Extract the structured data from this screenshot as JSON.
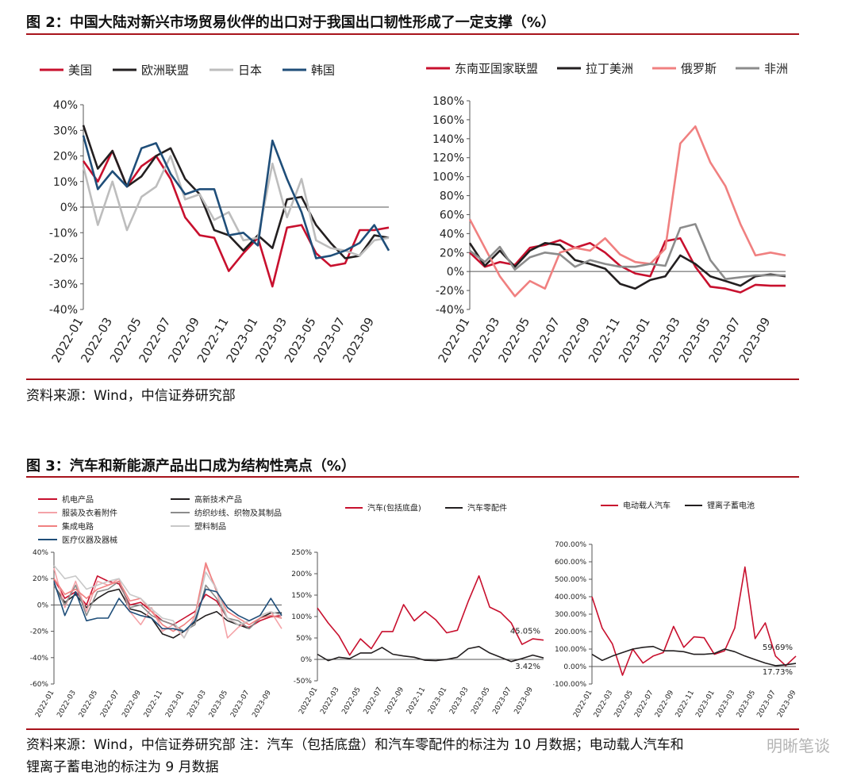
{
  "fig2": {
    "title": "图 2：中国大陆对新兴市场贸易伙伴的出口对于我国出口韧性形成了一定支撑（%）",
    "source": "资料来源：Wind，中信证券研究部"
  },
  "fig3": {
    "title": "图 3：汽车和新能源产品出口成为结构性亮点（%）",
    "source_line1": "资料来源：Wind，中信证券研究部 注：汽车（包括底盘）和汽车零配件的标注为 10 月数据；电动载人汽车和",
    "source_line2": "锂离子蓄电池的标注为 9 月数据"
  },
  "watermark": "明晰笔谈",
  "chart_data": [
    {
      "id": "c1",
      "type": "line",
      "x": [
        "2022-01",
        "2022-02",
        "2022-03",
        "2022-04",
        "2022-05",
        "2022-06",
        "2022-07",
        "2022-08",
        "2022-09",
        "2022-10",
        "2022-11",
        "2022-12",
        "2023-01",
        "2023-02",
        "2023-03",
        "2023-04",
        "2023-05",
        "2023-06",
        "2023-07",
        "2023-08",
        "2023-09",
        "2023-10"
      ],
      "xticks": [
        "2022-01",
        "2022-03",
        "2022-05",
        "2022-07",
        "2022-09",
        "2022-11",
        "2023-01",
        "2023-03",
        "2023-05",
        "2023-07",
        "2023-09"
      ],
      "ylim": [
        -40,
        40
      ],
      "yticks": [
        40,
        30,
        20,
        10,
        0,
        -10,
        -20,
        -30,
        -40
      ],
      "yfmt": "%",
      "series": [
        {
          "name": "美国",
          "color": "#c8102e",
          "values": [
            18,
            10,
            22,
            8,
            16,
            20,
            11,
            -4,
            -11,
            -12,
            -25,
            -18,
            -12,
            -31,
            -8,
            -7,
            -18,
            -23,
            -22,
            -9,
            -9,
            -8
          ]
        },
        {
          "name": "欧洲联盟",
          "color": "#231f20",
          "values": [
            32,
            15,
            22,
            8,
            12,
            20,
            23,
            11,
            5,
            -9,
            -11,
            -17,
            -11,
            -16,
            3,
            4,
            -7,
            -14,
            -20,
            -19,
            -11,
            -12
          ]
        },
        {
          "name": "日本",
          "color": "#bdbdbd",
          "values": [
            16,
            -7,
            10,
            -9,
            4,
            8,
            20,
            3,
            5,
            -5,
            -2,
            -13,
            -12,
            17,
            -4,
            11,
            -13,
            -16,
            -17,
            -19,
            -13,
            -12
          ]
        },
        {
          "name": "韩国",
          "color": "#1f4e79",
          "values": [
            28,
            7,
            14,
            8,
            23,
            25,
            13,
            5,
            7,
            7,
            -11,
            -10,
            -15,
            26,
            11,
            -2,
            -20,
            -19,
            -17,
            -14,
            -7,
            -17
          ]
        }
      ]
    },
    {
      "id": "c2",
      "type": "line",
      "x": [
        "2022-01",
        "2022-02",
        "2022-03",
        "2022-04",
        "2022-05",
        "2022-06",
        "2022-07",
        "2022-08",
        "2022-09",
        "2022-10",
        "2022-11",
        "2022-12",
        "2023-01",
        "2023-02",
        "2023-03",
        "2023-04",
        "2023-05",
        "2023-06",
        "2023-07",
        "2023-08",
        "2023-09",
        "2023-10"
      ],
      "xticks": [
        "2022-01",
        "2022-03",
        "2022-05",
        "2022-07",
        "2022-09",
        "2022-11",
        "2023-01",
        "2023-03",
        "2023-05",
        "2023-07",
        "2023-09"
      ],
      "ylim": [
        -40,
        180
      ],
      "yticks": [
        180,
        160,
        140,
        120,
        100,
        80,
        60,
        40,
        20,
        0,
        -20,
        -40
      ],
      "yfmt": "%",
      "series": [
        {
          "name": "东南亚国家联盟",
          "color": "#c8102e",
          "values": [
            20,
            5,
            10,
            7,
            25,
            28,
            33,
            25,
            30,
            20,
            6,
            -2,
            -5,
            32,
            35,
            5,
            -16,
            -18,
            -22,
            -14,
            -15,
            -15
          ]
        },
        {
          "name": "拉丁美洲",
          "color": "#231f20",
          "values": [
            30,
            6,
            22,
            5,
            22,
            30,
            28,
            12,
            8,
            3,
            -13,
            -18,
            -9,
            -5,
            17,
            8,
            -5,
            -10,
            -15,
            -5,
            -3,
            -5
          ]
        },
        {
          "name": "俄罗斯",
          "color": "#f08080",
          "values": [
            55,
            25,
            -5,
            -26,
            -10,
            -18,
            20,
            25,
            22,
            35,
            18,
            10,
            8,
            24,
            135,
            153,
            115,
            90,
            50,
            17,
            20,
            17
          ]
        },
        {
          "name": "非洲",
          "color": "#8c8c8c",
          "values": [
            22,
            10,
            26,
            2,
            15,
            20,
            18,
            5,
            12,
            8,
            5,
            5,
            8,
            6,
            46,
            50,
            12,
            -8,
            -6,
            -4,
            -4,
            -4
          ]
        }
      ]
    },
    {
      "id": "c3",
      "type": "line",
      "x": [
        "2022-01",
        "2022-02",
        "2022-03",
        "2022-04",
        "2022-05",
        "2022-06",
        "2022-07",
        "2022-08",
        "2022-09",
        "2022-10",
        "2022-11",
        "2022-12",
        "2023-01",
        "2023-02",
        "2023-03",
        "2023-04",
        "2023-05",
        "2023-06",
        "2023-07",
        "2023-08",
        "2023-09",
        "2023-10"
      ],
      "xticks": [
        "2022-01",
        "2022-03",
        "2022-05",
        "2022-07",
        "2022-09",
        "2022-11",
        "2023-01",
        "2023-03",
        "2023-05",
        "2023-07",
        "2023-09"
      ],
      "ylim": [
        -60,
        40
      ],
      "yticks": [
        40,
        20,
        0,
        -20,
        -40,
        -60
      ],
      "yfmt": "%",
      "series": [
        {
          "name": "机电产品",
          "color": "#c8102e",
          "values": [
            20,
            5,
            10,
            0,
            22,
            18,
            16,
            0,
            2,
            -5,
            -12,
            -15,
            -10,
            -5,
            8,
            3,
            -10,
            -15,
            -17,
            -12,
            -9,
            -8
          ]
        },
        {
          "name": "高新技术产品",
          "color": "#231f20",
          "values": [
            15,
            2,
            8,
            -2,
            5,
            10,
            12,
            -3,
            -5,
            -10,
            -22,
            -25,
            -20,
            -13,
            -8,
            -5,
            -12,
            -15,
            -18,
            -10,
            -6,
            -6
          ]
        },
        {
          "name": "服装及衣着附件",
          "color": "#f4a3a8",
          "values": [
            28,
            -2,
            18,
            -5,
            18,
            15,
            20,
            -5,
            -15,
            -2,
            -20,
            -15,
            -25,
            -8,
            30,
            12,
            -25,
            -17,
            -12,
            -8,
            -5,
            -18
          ]
        },
        {
          "name": "纺织纱线、织物及其制品",
          "color": "#8c8c8c",
          "values": [
            15,
            0,
            15,
            -8,
            10,
            12,
            18,
            -2,
            0,
            -8,
            -12,
            -15,
            -20,
            -15,
            15,
            5,
            -10,
            -12,
            -18,
            -10,
            -8,
            -10
          ]
        },
        {
          "name": "集成电路",
          "color": "#f08080",
          "values": [
            20,
            8,
            12,
            5,
            12,
            15,
            18,
            3,
            5,
            -5,
            -15,
            -20,
            -15,
            -8,
            32,
            10,
            -5,
            -10,
            -15,
            -10,
            -8,
            -10
          ]
        },
        {
          "name": "塑料制品",
          "color": "#c8c8c8",
          "values": [
            30,
            20,
            22,
            12,
            15,
            18,
            20,
            8,
            5,
            -3,
            -10,
            -12,
            -25,
            -10,
            25,
            12,
            -10,
            -15,
            -12,
            -8,
            -5,
            -8
          ]
        },
        {
          "name": "医疗仪器及器械",
          "color": "#1f4e79",
          "values": [
            18,
            -8,
            10,
            -12,
            -10,
            -10,
            5,
            -5,
            -8,
            -10,
            -18,
            -18,
            -20,
            -12,
            12,
            10,
            -2,
            -8,
            -12,
            -8,
            5,
            -8
          ]
        }
      ]
    },
    {
      "id": "c4",
      "type": "line",
      "x": [
        "2022-01",
        "2022-02",
        "2022-03",
        "2022-04",
        "2022-05",
        "2022-06",
        "2022-07",
        "2022-08",
        "2022-09",
        "2022-10",
        "2022-11",
        "2022-12",
        "2023-01",
        "2023-02",
        "2023-03",
        "2023-04",
        "2023-05",
        "2023-06",
        "2023-07",
        "2023-08",
        "2023-09",
        "2023-10"
      ],
      "xticks": [
        "2022-01",
        "2022-03",
        "2022-05",
        "2022-07",
        "2022-09",
        "2022-11",
        "2023-01",
        "2023-03",
        "2023-05",
        "2023-07",
        "2023-09"
      ],
      "ylim": [
        -50,
        250
      ],
      "yticks": [
        250,
        200,
        150,
        100,
        50,
        0,
        -50
      ],
      "yfmt": "%",
      "series": [
        {
          "name": "汽车(包括底盘)",
          "color": "#c8102e",
          "values": [
            120,
            85,
            55,
            10,
            48,
            25,
            65,
            65,
            128,
            90,
            112,
            92,
            62,
            68,
            135,
            195,
            122,
            110,
            85,
            35,
            48,
            45.05
          ]
        },
        {
          "name": "汽车零配件",
          "color": "#231f20",
          "values": [
            12,
            -3,
            5,
            2,
            15,
            15,
            28,
            12,
            8,
            5,
            -2,
            -3,
            0,
            5,
            25,
            30,
            15,
            5,
            -5,
            2,
            10,
            3.42
          ]
        }
      ],
      "annotations": [
        {
          "text": "45.05%",
          "series": 0,
          "index": 21
        },
        {
          "text": "3.42%",
          "series": 1,
          "index": 21
        }
      ]
    },
    {
      "id": "c5",
      "type": "line",
      "x": [
        "2022-01",
        "2022-02",
        "2022-03",
        "2022-04",
        "2022-05",
        "2022-06",
        "2022-07",
        "2022-08",
        "2022-09",
        "2022-10",
        "2022-11",
        "2022-12",
        "2023-01",
        "2023-02",
        "2023-03",
        "2023-04",
        "2023-05",
        "2023-06",
        "2023-07",
        "2023-08",
        "2023-09"
      ],
      "xticks": [
        "2022-01",
        "2022-03",
        "2022-05",
        "2022-07",
        "2022-09",
        "2022-11",
        "2023-01",
        "2023-03",
        "2023-05",
        "2023-07",
        "2023-09"
      ],
      "ylim": [
        -100,
        700
      ],
      "yticks": [
        700,
        600,
        500,
        400,
        300,
        200,
        100,
        0,
        -100
      ],
      "yfmt": "%2",
      "series": [
        {
          "name": "电动载人汽车",
          "color": "#c8102e",
          "values": [
            400,
            220,
            130,
            -50,
            100,
            20,
            60,
            80,
            230,
            110,
            170,
            165,
            70,
            90,
            220,
            570,
            160,
            250,
            60,
            5,
            59.69
          ]
        },
        {
          "name": "锂离子蓄电池",
          "color": "#231f20",
          "values": [
            70,
            35,
            60,
            80,
            100,
            110,
            115,
            90,
            90,
            85,
            70,
            70,
            75,
            100,
            85,
            60,
            40,
            20,
            5,
            10,
            17.73
          ]
        }
      ],
      "annotations": [
        {
          "text": "59.69%",
          "series": 0,
          "index": 20
        },
        {
          "text": "17.73%",
          "series": 1,
          "index": 20
        }
      ]
    }
  ]
}
